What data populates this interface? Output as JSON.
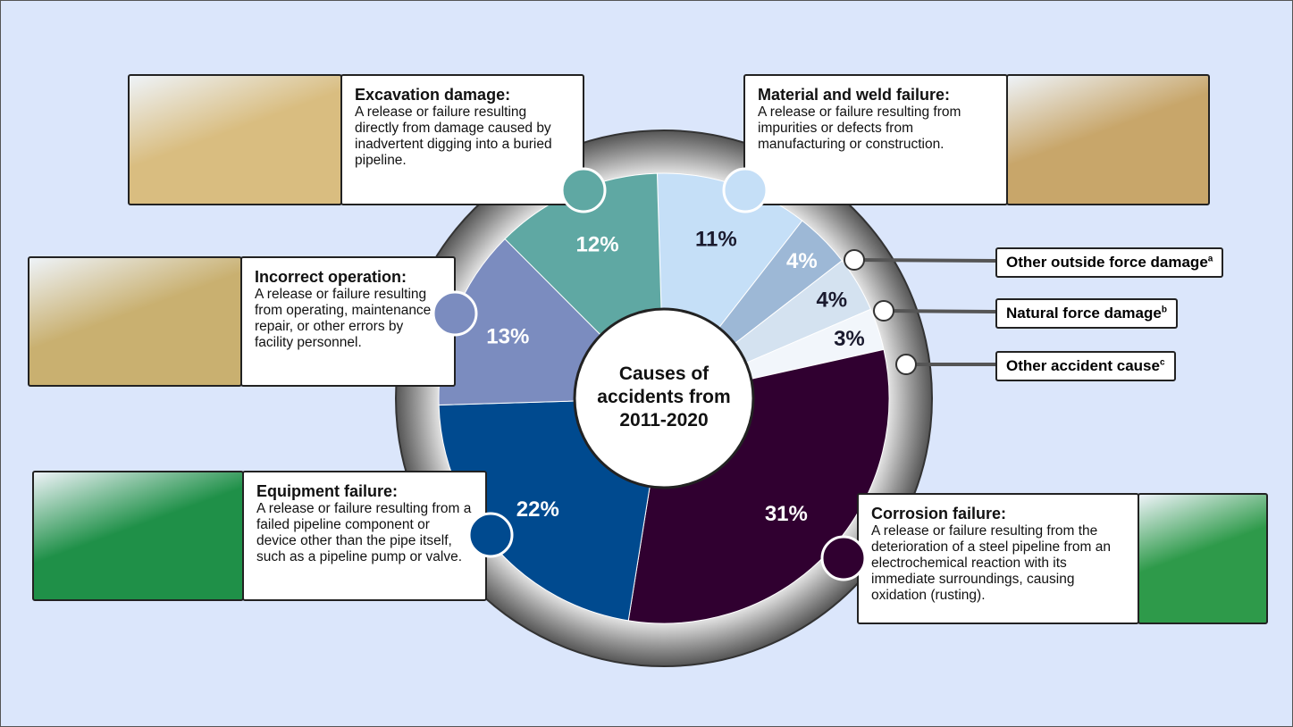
{
  "chart_data": {
    "type": "donut",
    "title": "Causes of accidents from 2011-2020",
    "categories": [
      "Material and weld failure:",
      "Other outside force damage",
      "Natural force damage",
      "Other accident cause",
      "Corrosion failure:",
      "Equipment failure:",
      "Incorrect operation:",
      "Excavation damage:"
    ],
    "footnotes": [
      null,
      "a",
      "b",
      "c",
      null,
      null,
      null,
      null
    ],
    "values": [
      11,
      4,
      4,
      3,
      31,
      22,
      13,
      12
    ],
    "value_labels": [
      "11%",
      "4%",
      "4%",
      "3%",
      "31%",
      "22%",
      "13%",
      "12%"
    ],
    "colors": [
      "#c5dff7",
      "#9db8d6",
      "#d4e2f0",
      "#f2f6fb",
      "#300030",
      "#004a8f",
      "#7b8cbf",
      "#5fa8a3"
    ],
    "label_colors": [
      "#1a1a2e",
      "#ffffff",
      "#1a1a2e",
      "#1a1a2e",
      "#ffffff",
      "#ffffff",
      "#ffffff",
      "#ffffff"
    ],
    "descriptions": [
      "A release or failure resulting from impurities or defects from manufacturing or construction.",
      null,
      null,
      null,
      "A release or failure resulting from the deterioration of a steel pipeline from an electrochemical reaction with its immediate surroundings, causing oxidation (rusting).",
      "A release or failure resulting from a failed pipeline component or device other than the pipe itself, such as a pipeline pump or valve.",
      "A release or failure resulting from operating, maintenance, repair, or other errors by facility personnel.",
      "A release or failure resulting directly from damage caused by inadvertent digging into a buried pipeline."
    ]
  }
}
